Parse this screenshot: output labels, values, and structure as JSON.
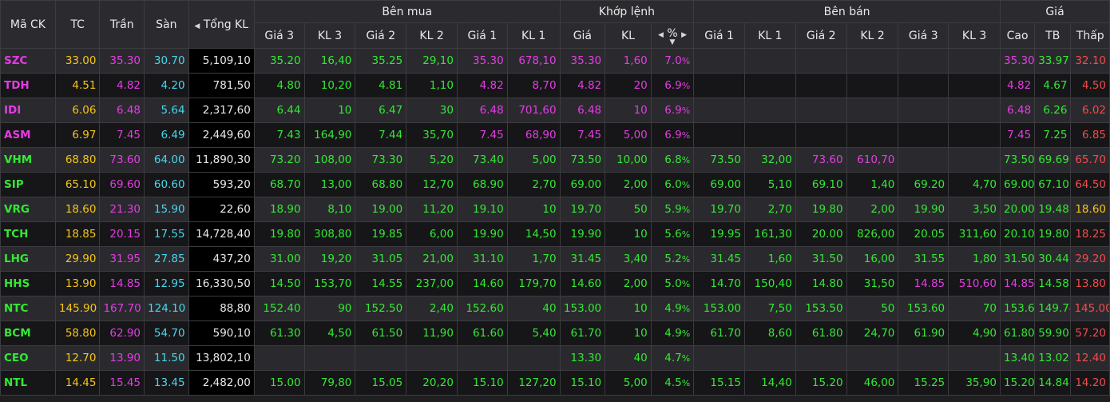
{
  "header": {
    "ma_ck": "Mã CK",
    "tc": "TC",
    "tran": "Trần",
    "san": "Sàn",
    "tong_kl": "Tổng KL",
    "ben_mua": "Bên mua",
    "khop_lenh": "Khớp lệnh",
    "ben_ban": "Bên bán",
    "gia_group": "Giá",
    "buy_cols": [
      "Giá 3",
      "KL 3",
      "Giá 2",
      "KL 2",
      "Giá 1",
      "KL 1"
    ],
    "match_cols": [
      "Giá",
      "KL",
      "%"
    ],
    "sell_cols": [
      "Giá 1",
      "KL 1",
      "Giá 2",
      "KL 2",
      "Giá 3",
      "KL 3"
    ],
    "price_cols": [
      "Cao",
      "TB",
      "Thấp"
    ]
  },
  "colors": {
    "ceiling": "#e43ce4",
    "up": "#33e833",
    "reference": "#f5c518",
    "floor": "#47d6ec",
    "down": "#f24b4b"
  },
  "rows": [
    {
      "sym": "SZC",
      "sym_c": "pink",
      "tc": "33.00",
      "tran": "35.30",
      "san": "30.70",
      "tong": "5,109,10",
      "b_g3": "35.20",
      "b_g3_c": "green",
      "b_k3": "16,40",
      "b_k3_c": "green",
      "b_g2": "35.25",
      "b_g2_c": "green",
      "b_k2": "29,10",
      "b_k2_c": "green",
      "b_g1": "35.30",
      "b_g1_c": "pink",
      "b_k1": "678,10",
      "b_k1_c": "pink",
      "m_g": "35.30",
      "m_g_c": "pink",
      "m_k": "1,60",
      "m_k_c": "pink",
      "m_p": "7.0",
      "m_p_c": "pink",
      "s_g1": "",
      "s_g1_c": "",
      "s_k1": "",
      "s_k1_c": "",
      "s_g2": "",
      "s_g2_c": "",
      "s_k2": "",
      "s_k2_c": "",
      "s_g3": "",
      "s_g3_c": "",
      "s_k3": "",
      "s_k3_c": "",
      "cao": "35.30",
      "cao_c": "pink",
      "tb": "33.97",
      "tb_c": "green",
      "thap": "32.10",
      "thap_c": "red"
    },
    {
      "sym": "TDH",
      "sym_c": "pink",
      "tc": "4.51",
      "tran": "4.82",
      "san": "4.20",
      "tong": "781,50",
      "b_g3": "4.80",
      "b_g3_c": "green",
      "b_k3": "10,20",
      "b_k3_c": "green",
      "b_g2": "4.81",
      "b_g2_c": "green",
      "b_k2": "1,10",
      "b_k2_c": "green",
      "b_g1": "4.82",
      "b_g1_c": "pink",
      "b_k1": "8,70",
      "b_k1_c": "pink",
      "m_g": "4.82",
      "m_g_c": "pink",
      "m_k": "20",
      "m_k_c": "pink",
      "m_p": "6.9",
      "m_p_c": "pink",
      "s_g1": "",
      "s_g1_c": "",
      "s_k1": "",
      "s_k1_c": "",
      "s_g2": "",
      "s_g2_c": "",
      "s_k2": "",
      "s_k2_c": "",
      "s_g3": "",
      "s_g3_c": "",
      "s_k3": "",
      "s_k3_c": "",
      "cao": "4.82",
      "cao_c": "pink",
      "tb": "4.67",
      "tb_c": "green",
      "thap": "4.50",
      "thap_c": "red"
    },
    {
      "sym": "IDI",
      "sym_c": "pink",
      "tc": "6.06",
      "tran": "6.48",
      "san": "5.64",
      "tong": "2,317,60",
      "b_g3": "6.44",
      "b_g3_c": "green",
      "b_k3": "10",
      "b_k3_c": "green",
      "b_g2": "6.47",
      "b_g2_c": "green",
      "b_k2": "30",
      "b_k2_c": "green",
      "b_g1": "6.48",
      "b_g1_c": "pink",
      "b_k1": "701,60",
      "b_k1_c": "pink",
      "m_g": "6.48",
      "m_g_c": "pink",
      "m_k": "10",
      "m_k_c": "pink",
      "m_p": "6.9",
      "m_p_c": "pink",
      "s_g1": "",
      "s_g1_c": "",
      "s_k1": "",
      "s_k1_c": "",
      "s_g2": "",
      "s_g2_c": "",
      "s_k2": "",
      "s_k2_c": "",
      "s_g3": "",
      "s_g3_c": "",
      "s_k3": "",
      "s_k3_c": "",
      "cao": "6.48",
      "cao_c": "pink",
      "tb": "6.26",
      "tb_c": "green",
      "thap": "6.02",
      "thap_c": "red"
    },
    {
      "sym": "ASM",
      "sym_c": "pink",
      "tc": "6.97",
      "tran": "7.45",
      "san": "6.49",
      "tong": "2,449,60",
      "b_g3": "7.43",
      "b_g3_c": "green",
      "b_k3": "164,90",
      "b_k3_c": "green",
      "b_g2": "7.44",
      "b_g2_c": "green",
      "b_k2": "35,70",
      "b_k2_c": "green",
      "b_g1": "7.45",
      "b_g1_c": "pink",
      "b_k1": "68,90",
      "b_k1_c": "pink",
      "m_g": "7.45",
      "m_g_c": "pink",
      "m_k": "5,00",
      "m_k_c": "pink",
      "m_p": "6.9",
      "m_p_c": "pink",
      "s_g1": "",
      "s_g1_c": "",
      "s_k1": "",
      "s_k1_c": "",
      "s_g2": "",
      "s_g2_c": "",
      "s_k2": "",
      "s_k2_c": "",
      "s_g3": "",
      "s_g3_c": "",
      "s_k3": "",
      "s_k3_c": "",
      "cao": "7.45",
      "cao_c": "pink",
      "tb": "7.25",
      "tb_c": "green",
      "thap": "6.85",
      "thap_c": "red"
    },
    {
      "sym": "VHM",
      "sym_c": "green",
      "tc": "68.80",
      "tran": "73.60",
      "san": "64.00",
      "tong": "11,890,30",
      "b_g3": "73.20",
      "b_g3_c": "green",
      "b_k3": "108,00",
      "b_k3_c": "green",
      "b_g2": "73.30",
      "b_g2_c": "green",
      "b_k2": "5,20",
      "b_k2_c": "green",
      "b_g1": "73.40",
      "b_g1_c": "green",
      "b_k1": "5,00",
      "b_k1_c": "green",
      "m_g": "73.50",
      "m_g_c": "green",
      "m_k": "10,00",
      "m_k_c": "green",
      "m_p": "6.8",
      "m_p_c": "green",
      "s_g1": "73.50",
      "s_g1_c": "green",
      "s_k1": "32,00",
      "s_k1_c": "green",
      "s_g2": "73.60",
      "s_g2_c": "pink",
      "s_k2": "610,70",
      "s_k2_c": "pink",
      "s_g3": "",
      "s_g3_c": "",
      "s_k3": "",
      "s_k3_c": "",
      "cao": "73.50",
      "cao_c": "green",
      "tb": "69.69",
      "tb_c": "green",
      "thap": "65.70",
      "thap_c": "red"
    },
    {
      "sym": "SIP",
      "sym_c": "green",
      "tc": "65.10",
      "tran": "69.60",
      "san": "60.60",
      "tong": "593,20",
      "b_g3": "68.70",
      "b_g3_c": "green",
      "b_k3": "13,00",
      "b_k3_c": "green",
      "b_g2": "68.80",
      "b_g2_c": "green",
      "b_k2": "12,70",
      "b_k2_c": "green",
      "b_g1": "68.90",
      "b_g1_c": "green",
      "b_k1": "2,70",
      "b_k1_c": "green",
      "m_g": "69.00",
      "m_g_c": "green",
      "m_k": "2,00",
      "m_k_c": "green",
      "m_p": "6.0",
      "m_p_c": "green",
      "s_g1": "69.00",
      "s_g1_c": "green",
      "s_k1": "5,10",
      "s_k1_c": "green",
      "s_g2": "69.10",
      "s_g2_c": "green",
      "s_k2": "1,40",
      "s_k2_c": "green",
      "s_g3": "69.20",
      "s_g3_c": "green",
      "s_k3": "4,70",
      "s_k3_c": "green",
      "cao": "69.00",
      "cao_c": "green",
      "tb": "67.10",
      "tb_c": "green",
      "thap": "64.50",
      "thap_c": "red"
    },
    {
      "sym": "VRG",
      "sym_c": "green",
      "tc": "18.60",
      "tran": "21.30",
      "san": "15.90",
      "tong": "22,60",
      "b_g3": "18.90",
      "b_g3_c": "green",
      "b_k3": "8,10",
      "b_k3_c": "green",
      "b_g2": "19.00",
      "b_g2_c": "green",
      "b_k2": "11,20",
      "b_k2_c": "green",
      "b_g1": "19.10",
      "b_g1_c": "green",
      "b_k1": "10",
      "b_k1_c": "green",
      "m_g": "19.70",
      "m_g_c": "green",
      "m_k": "50",
      "m_k_c": "green",
      "m_p": "5.9",
      "m_p_c": "green",
      "s_g1": "19.70",
      "s_g1_c": "green",
      "s_k1": "2,70",
      "s_k1_c": "green",
      "s_g2": "19.80",
      "s_g2_c": "green",
      "s_k2": "2,00",
      "s_k2_c": "green",
      "s_g3": "19.90",
      "s_g3_c": "green",
      "s_k3": "3,50",
      "s_k3_c": "green",
      "cao": "20.00",
      "cao_c": "green",
      "tb": "19.48",
      "tb_c": "green",
      "thap": "18.60",
      "thap_c": "yellow"
    },
    {
      "sym": "TCH",
      "sym_c": "green",
      "tc": "18.85",
      "tran": "20.15",
      "san": "17.55",
      "tong": "14,728,40",
      "b_g3": "19.80",
      "b_g3_c": "green",
      "b_k3": "308,80",
      "b_k3_c": "green",
      "b_g2": "19.85",
      "b_g2_c": "green",
      "b_k2": "6,00",
      "b_k2_c": "green",
      "b_g1": "19.90",
      "b_g1_c": "green",
      "b_k1": "14,50",
      "b_k1_c": "green",
      "m_g": "19.90",
      "m_g_c": "green",
      "m_k": "10",
      "m_k_c": "green",
      "m_p": "5.6",
      "m_p_c": "green",
      "s_g1": "19.95",
      "s_g1_c": "green",
      "s_k1": "161,30",
      "s_k1_c": "green",
      "s_g2": "20.00",
      "s_g2_c": "green",
      "s_k2": "826,00",
      "s_k2_c": "green",
      "s_g3": "20.05",
      "s_g3_c": "green",
      "s_k3": "311,60",
      "s_k3_c": "green",
      "cao": "20.10",
      "cao_c": "green",
      "tb": "19.80",
      "tb_c": "green",
      "thap": "18.25",
      "thap_c": "red"
    },
    {
      "sym": "LHG",
      "sym_c": "green",
      "tc": "29.90",
      "tran": "31.95",
      "san": "27.85",
      "tong": "437,20",
      "b_g3": "31.00",
      "b_g3_c": "green",
      "b_k3": "19,20",
      "b_k3_c": "green",
      "b_g2": "31.05",
      "b_g2_c": "green",
      "b_k2": "21,00",
      "b_k2_c": "green",
      "b_g1": "31.10",
      "b_g1_c": "green",
      "b_k1": "1,70",
      "b_k1_c": "green",
      "m_g": "31.45",
      "m_g_c": "green",
      "m_k": "3,40",
      "m_k_c": "green",
      "m_p": "5.2",
      "m_p_c": "green",
      "s_g1": "31.45",
      "s_g1_c": "green",
      "s_k1": "1,60",
      "s_k1_c": "green",
      "s_g2": "31.50",
      "s_g2_c": "green",
      "s_k2": "16,00",
      "s_k2_c": "green",
      "s_g3": "31.55",
      "s_g3_c": "green",
      "s_k3": "1,80",
      "s_k3_c": "green",
      "cao": "31.50",
      "cao_c": "green",
      "tb": "30.44",
      "tb_c": "green",
      "thap": "29.20",
      "thap_c": "red"
    },
    {
      "sym": "HHS",
      "sym_c": "green",
      "tc": "13.90",
      "tran": "14.85",
      "san": "12.95",
      "tong": "16,330,50",
      "b_g3": "14.50",
      "b_g3_c": "green",
      "b_k3": "153,70",
      "b_k3_c": "green",
      "b_g2": "14.55",
      "b_g2_c": "green",
      "b_k2": "237,00",
      "b_k2_c": "green",
      "b_g1": "14.60",
      "b_g1_c": "green",
      "b_k1": "179,70",
      "b_k1_c": "green",
      "m_g": "14.60",
      "m_g_c": "green",
      "m_k": "2,00",
      "m_k_c": "green",
      "m_p": "5.0",
      "m_p_c": "green",
      "s_g1": "14.70",
      "s_g1_c": "green",
      "s_k1": "150,40",
      "s_k1_c": "green",
      "s_g2": "14.80",
      "s_g2_c": "green",
      "s_k2": "31,50",
      "s_k2_c": "green",
      "s_g3": "14.85",
      "s_g3_c": "pink",
      "s_k3": "510,60",
      "s_k3_c": "pink",
      "cao": "14.85",
      "cao_c": "pink",
      "tb": "14.58",
      "tb_c": "green",
      "thap": "13.80",
      "thap_c": "red"
    },
    {
      "sym": "NTC",
      "sym_c": "green",
      "tc": "145.90",
      "tran": "167.70",
      "san": "124.10",
      "tong": "88,80",
      "b_g3": "152.40",
      "b_g3_c": "green",
      "b_k3": "90",
      "b_k3_c": "green",
      "b_g2": "152.50",
      "b_g2_c": "green",
      "b_k2": "2,40",
      "b_k2_c": "green",
      "b_g1": "152.60",
      "b_g1_c": "green",
      "b_k1": "40",
      "b_k1_c": "green",
      "m_g": "153.00",
      "m_g_c": "green",
      "m_k": "10",
      "m_k_c": "green",
      "m_p": "4.9",
      "m_p_c": "green",
      "s_g1": "153.00",
      "s_g1_c": "green",
      "s_k1": "7,50",
      "s_k1_c": "green",
      "s_g2": "153.50",
      "s_g2_c": "green",
      "s_k2": "50",
      "s_k2_c": "green",
      "s_g3": "153.60",
      "s_g3_c": "green",
      "s_k3": "70",
      "s_k3_c": "green",
      "cao": "153.60",
      "cao_c": "green",
      "tb": "149.74",
      "tb_c": "green",
      "thap": "145.00",
      "thap_c": "red"
    },
    {
      "sym": "BCM",
      "sym_c": "green",
      "tc": "58.80",
      "tran": "62.90",
      "san": "54.70",
      "tong": "590,10",
      "b_g3": "61.30",
      "b_g3_c": "green",
      "b_k3": "4,50",
      "b_k3_c": "green",
      "b_g2": "61.50",
      "b_g2_c": "green",
      "b_k2": "11,90",
      "b_k2_c": "green",
      "b_g1": "61.60",
      "b_g1_c": "green",
      "b_k1": "5,40",
      "b_k1_c": "green",
      "m_g": "61.70",
      "m_g_c": "green",
      "m_k": "10",
      "m_k_c": "green",
      "m_p": "4.9",
      "m_p_c": "green",
      "s_g1": "61.70",
      "s_g1_c": "green",
      "s_k1": "8,60",
      "s_k1_c": "green",
      "s_g2": "61.80",
      "s_g2_c": "green",
      "s_k2": "24,70",
      "s_k2_c": "green",
      "s_g3": "61.90",
      "s_g3_c": "green",
      "s_k3": "4,90",
      "s_k3_c": "green",
      "cao": "61.80",
      "cao_c": "green",
      "tb": "59.90",
      "tb_c": "green",
      "thap": "57.20",
      "thap_c": "red"
    },
    {
      "sym": "CEO",
      "sym_c": "green",
      "tc": "12.70",
      "tran": "13.90",
      "san": "11.50",
      "tong": "13,802,10",
      "b_g3": "",
      "b_g3_c": "",
      "b_k3": "",
      "b_k3_c": "",
      "b_g2": "",
      "b_g2_c": "",
      "b_k2": "",
      "b_k2_c": "",
      "b_g1": "",
      "b_g1_c": "",
      "b_k1": "",
      "b_k1_c": "",
      "m_g": "13.30",
      "m_g_c": "green",
      "m_k": "40",
      "m_k_c": "green",
      "m_p": "4.7",
      "m_p_c": "green",
      "s_g1": "",
      "s_g1_c": "",
      "s_k1": "",
      "s_k1_c": "",
      "s_g2": "",
      "s_g2_c": "",
      "s_k2": "",
      "s_k2_c": "",
      "s_g3": "",
      "s_g3_c": "",
      "s_k3": "",
      "s_k3_c": "",
      "cao": "13.40",
      "cao_c": "green",
      "tb": "13.02",
      "tb_c": "green",
      "thap": "12.40",
      "thap_c": "red"
    },
    {
      "sym": "NTL",
      "sym_c": "green",
      "tc": "14.45",
      "tran": "15.45",
      "san": "13.45",
      "tong": "2,482,00",
      "b_g3": "15.00",
      "b_g3_c": "green",
      "b_k3": "79,80",
      "b_k3_c": "green",
      "b_g2": "15.05",
      "b_g2_c": "green",
      "b_k2": "20,20",
      "b_k2_c": "green",
      "b_g1": "15.10",
      "b_g1_c": "green",
      "b_k1": "127,20",
      "b_k1_c": "green",
      "m_g": "15.10",
      "m_g_c": "green",
      "m_k": "5,00",
      "m_k_c": "green",
      "m_p": "4.5",
      "m_p_c": "green",
      "s_g1": "15.15",
      "s_g1_c": "green",
      "s_k1": "14,40",
      "s_k1_c": "green",
      "s_g2": "15.20",
      "s_g2_c": "green",
      "s_k2": "46,00",
      "s_k2_c": "green",
      "s_g3": "15.25",
      "s_g3_c": "green",
      "s_k3": "35,90",
      "s_k3_c": "green",
      "cao": "15.20",
      "cao_c": "green",
      "tb": "14.84",
      "tb_c": "green",
      "thap": "14.20",
      "thap_c": "red"
    }
  ]
}
